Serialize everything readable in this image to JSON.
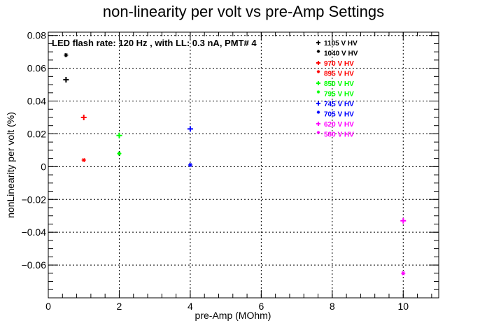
{
  "chart_data": {
    "type": "scatter",
    "title": "non-linearity per volt vs pre-Amp Settings",
    "xlabel": "pre-Amp (MOhm)",
    "ylabel": "nonLinearity per volt (%)",
    "annotation": "LED flash rate: 120 Hz , with LL: 0.3 nA, PMT# 4",
    "xlim": [
      0,
      11
    ],
    "ylim": [
      -0.08,
      0.082
    ],
    "x_ticks": [
      0,
      2,
      4,
      6,
      8,
      10
    ],
    "y_ticks": [
      -0.06,
      -0.04,
      -0.02,
      0,
      0.02,
      0.04,
      0.06,
      0.08
    ],
    "x_tick_labels": [
      "0",
      "2",
      "4",
      "6",
      "8",
      "10"
    ],
    "y_tick_labels": [
      "−0.06",
      "−0.04",
      "−0.02",
      "0",
      "0.02",
      "0.04",
      "0.06",
      "0.08"
    ],
    "grid": true,
    "legend_position": "top-right",
    "series": [
      {
        "name": "1105 V HV",
        "color": "#000000",
        "marker": "plus",
        "points": [
          {
            "x": 0.5,
            "y": 0.053
          }
        ]
      },
      {
        "name": "1040 V HV",
        "color": "#000000",
        "marker": "star",
        "points": [
          {
            "x": 0.5,
            "y": 0.068
          }
        ]
      },
      {
        "name": "970 V HV",
        "color": "#ff0000",
        "marker": "plus",
        "points": [
          {
            "x": 1.0,
            "y": 0.03
          }
        ]
      },
      {
        "name": "895 V HV",
        "color": "#ff0000",
        "marker": "star",
        "points": [
          {
            "x": 1.0,
            "y": 0.004
          }
        ]
      },
      {
        "name": "850 V HV",
        "color": "#00ff00",
        "marker": "plus",
        "points": [
          {
            "x": 2.0,
            "y": 0.019
          }
        ]
      },
      {
        "name": "795 V HV",
        "color": "#00ff00",
        "marker": "star",
        "points": [
          {
            "x": 2.0,
            "y": 0.008
          }
        ]
      },
      {
        "name": "745 V HV",
        "color": "#0000ff",
        "marker": "plus",
        "points": [
          {
            "x": 4.0,
            "y": 0.023
          }
        ]
      },
      {
        "name": "705 V HV",
        "color": "#0000ff",
        "marker": "star",
        "points": [
          {
            "x": 4.0,
            "y": 0.001
          }
        ]
      },
      {
        "name": "620 V HV",
        "color": "#ff00ff",
        "marker": "plus",
        "points": [
          {
            "x": 10.0,
            "y": -0.033
          }
        ]
      },
      {
        "name": "580 V HV",
        "color": "#ff00ff",
        "marker": "star",
        "points": [
          {
            "x": 10.0,
            "y": -0.065
          }
        ]
      }
    ]
  }
}
